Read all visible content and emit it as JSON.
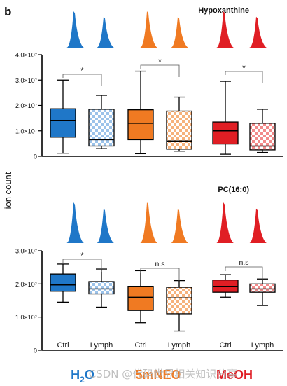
{
  "figure": {
    "panel_label": "b",
    "shared_ylabel": "ion count",
    "box_labels": [
      "Ctrl",
      "Lymph"
    ],
    "groups": [
      {
        "label": "H2O",
        "color": "#1f77c8"
      },
      {
        "label": "5mNEO",
        "color": "#f07a22"
      },
      {
        "label": "MeOH",
        "color": "#e01e24"
      }
    ],
    "watermark": "CSDN @代码世界相关知识分享"
  },
  "chart_data": [
    {
      "type": "box",
      "title": "Hypoxanthine",
      "ylabel": "ion count",
      "ylim": [
        0,
        40000000
      ],
      "yticks": [
        0,
        10000000,
        20000000,
        30000000,
        40000000
      ],
      "yticklabels": [
        "0",
        "1.0×10⁷",
        "2.0×10⁷",
        "3.0×10⁷",
        "4.0×10⁷"
      ],
      "series": [
        {
          "group": "H2O",
          "condition": "Ctrl",
          "fill": "solid",
          "color": "#1f77c8",
          "min": 1200000,
          "q1": 7500000,
          "median": 14000000,
          "q3": 18700000,
          "max": 30000000
        },
        {
          "group": "H2O",
          "condition": "Lymph",
          "fill": "checker",
          "color": "#1f77c8",
          "min": 3000000,
          "q1": 4000000,
          "median": 6500000,
          "q3": 18500000,
          "max": 24000000
        },
        {
          "group": "5mNEO",
          "condition": "Ctrl",
          "fill": "solid",
          "color": "#f07a22",
          "min": 1000000,
          "q1": 6500000,
          "median": 13000000,
          "q3": 18300000,
          "max": 33500000
        },
        {
          "group": "5mNEO",
          "condition": "Lymph",
          "fill": "checker",
          "color": "#f07a22",
          "min": 2000000,
          "q1": 2800000,
          "median": 6000000,
          "q3": 17800000,
          "max": 23300000
        },
        {
          "group": "MeOH",
          "condition": "Ctrl",
          "fill": "solid",
          "color": "#e01e24",
          "min": 800000,
          "q1": 4800000,
          "median": 10000000,
          "q3": 13500000,
          "max": 29500000
        },
        {
          "group": "MeOH",
          "condition": "Lymph",
          "fill": "checker",
          "color": "#e01e24",
          "min": 1500000,
          "q1": 2500000,
          "median": 4000000,
          "q3": 13000000,
          "max": 18500000
        }
      ],
      "annotations": [
        {
          "group": "H2O",
          "text": "*"
        },
        {
          "group": "5mNEO",
          "text": "*"
        },
        {
          "group": "MeOH",
          "text": "*"
        }
      ]
    },
    {
      "type": "box",
      "title": "PC(16:0)",
      "ylabel": "ion count",
      "ylim": [
        0,
        30000000
      ],
      "yticks": [
        0,
        10000000,
        20000000,
        30000000
      ],
      "yticklabels": [
        "0",
        "1.0×10⁷",
        "2.0×10⁷",
        "3.0×10⁷"
      ],
      "series": [
        {
          "group": "H2O",
          "condition": "Ctrl",
          "fill": "solid",
          "color": "#1f77c8",
          "min": 14500000,
          "q1": 17800000,
          "median": 19700000,
          "q3": 23000000,
          "max": 26000000
        },
        {
          "group": "H2O",
          "condition": "Lymph",
          "fill": "checker",
          "color": "#1f77c8",
          "min": 13000000,
          "q1": 17000000,
          "median": 18500000,
          "q3": 20700000,
          "max": 24500000
        },
        {
          "group": "5mNEO",
          "condition": "Ctrl",
          "fill": "solid",
          "color": "#f07a22",
          "min": 8300000,
          "q1": 12000000,
          "median": 16000000,
          "q3": 19300000,
          "max": 24000000
        },
        {
          "group": "5mNEO",
          "condition": "Lymph",
          "fill": "checker",
          "color": "#f07a22",
          "min": 5800000,
          "q1": 11000000,
          "median": 15800000,
          "q3": 19000000,
          "max": 21000000
        },
        {
          "group": "MeOH",
          "condition": "Ctrl",
          "fill": "solid",
          "color": "#e01e24",
          "min": 16000000,
          "q1": 17500000,
          "median": 19300000,
          "q3": 21200000,
          "max": 22800000
        },
        {
          "group": "MeOH",
          "condition": "Lymph",
          "fill": "checker",
          "color": "#e01e24",
          "min": 13500000,
          "q1": 17500000,
          "median": 18500000,
          "q3": 20000000,
          "max": 21500000
        }
      ],
      "annotations": [
        {
          "group": "H2O",
          "text": "*"
        },
        {
          "group": "5mNEO",
          "text": "n.s"
        },
        {
          "group": "MeOH",
          "text": "n.s"
        }
      ]
    }
  ]
}
